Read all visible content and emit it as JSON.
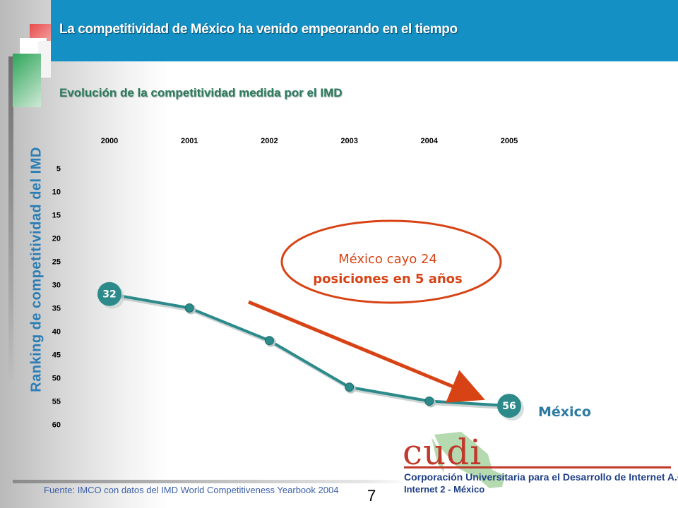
{
  "header": {
    "title": "La competitividad de México ha venido empeorando en el tiempo"
  },
  "subtitle": "Evolución de la competitividad medida por el  IMD",
  "chart_data": {
    "type": "line",
    "title": "Evolución de la competitividad medida por el  IMD",
    "ylabel": "Ranking de competitividad del IMD",
    "xlabel": "",
    "x": [
      "2000",
      "2001",
      "2002",
      "2003",
      "2004",
      "2005"
    ],
    "yticks": [
      5,
      10,
      15,
      20,
      25,
      30,
      35,
      40,
      45,
      50,
      55,
      60
    ],
    "ylim": [
      0,
      60
    ],
    "y_inverted": true,
    "series": [
      {
        "name": "México",
        "values": [
          32,
          35,
          42,
          52,
          55,
          56
        ]
      }
    ],
    "data_labels": [
      {
        "index": 0,
        "text": "32"
      },
      {
        "index": 5,
        "text": "56"
      }
    ],
    "annotation": {
      "line1": "México cayo 24",
      "line2": "posiciones en 5 años"
    },
    "colors": {
      "line": "#2c8a8a",
      "marker": "#2c8a8a",
      "arrow": "#d84315",
      "ellipse": "#d84315",
      "annotation_text": "#d84315",
      "label_badge": "#2c8a8a",
      "axis_text": "#000000",
      "series_label": "#2c7aa0"
    }
  },
  "footer": {
    "source": "Fuente: IMCO con datos del IMD World Competitiveness Yearbook 2004",
    "page_number": "7"
  },
  "logo": {
    "word": "cudi",
    "line1": "Corporación Universitaria para el Desarrollo de Internet A.C.",
    "line2": "Internet 2 - México"
  }
}
